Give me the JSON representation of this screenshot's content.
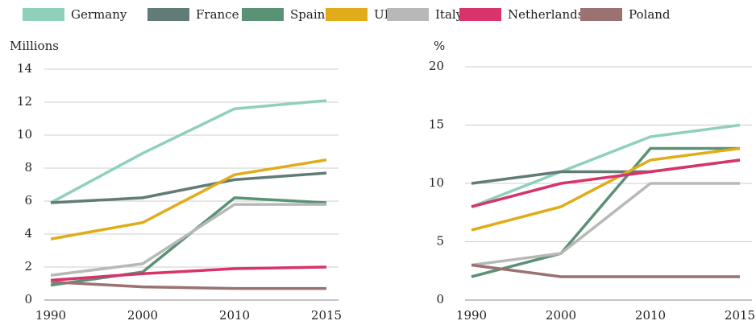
{
  "chart_data": [
    {
      "type": "line",
      "y_label": "Millions",
      "categories": [
        "1990",
        "2000",
        "2010",
        "2015"
      ],
      "ylim": [
        0,
        14
      ],
      "yticks": [
        0,
        2,
        4,
        6,
        8,
        10,
        12,
        14
      ],
      "grid": true,
      "legend": "top",
      "series": [
        {
          "name": "Germany",
          "color": "#8fd0bd",
          "values": [
            5.9,
            8.9,
            11.6,
            12.1
          ]
        },
        {
          "name": "France",
          "color": "#617b77",
          "values": [
            5.9,
            6.2,
            7.3,
            7.7
          ]
        },
        {
          "name": "Spain",
          "color": "#5a9276",
          "values": [
            0.9,
            1.7,
            6.2,
            5.9
          ]
        },
        {
          "name": "UK",
          "color": "#e0ac1a",
          "values": [
            3.7,
            4.7,
            7.6,
            8.5
          ]
        },
        {
          "name": "Italy",
          "color": "#b7b9b8",
          "values": [
            1.5,
            2.2,
            5.8,
            5.8
          ]
        },
        {
          "name": "Netherlands",
          "color": "#d8336b",
          "values": [
            1.2,
            1.6,
            1.9,
            2.0
          ]
        },
        {
          "name": "Poland",
          "color": "#9b7171",
          "values": [
            1.1,
            0.8,
            0.7,
            0.7
          ]
        }
      ]
    },
    {
      "type": "line",
      "y_label": "%",
      "categories": [
        "1990",
        "2000",
        "2010",
        "2015"
      ],
      "ylim": [
        0,
        20
      ],
      "yticks": [
        0,
        5,
        10,
        15,
        20
      ],
      "grid": true,
      "series": [
        {
          "name": "Germany",
          "color": "#8fd0bd",
          "values": [
            8,
            11,
            14,
            15
          ]
        },
        {
          "name": "France",
          "color": "#617b77",
          "values": [
            10,
            11,
            11,
            12
          ]
        },
        {
          "name": "Spain",
          "color": "#5a9276",
          "values": [
            2,
            4,
            13,
            13
          ]
        },
        {
          "name": "UK",
          "color": "#e0ac1a",
          "values": [
            6,
            8,
            12,
            13
          ]
        },
        {
          "name": "Italy",
          "color": "#b7b9b8",
          "values": [
            3,
            4,
            10,
            10
          ]
        },
        {
          "name": "Netherlands",
          "color": "#d8336b",
          "values": [
            8,
            10,
            11,
            12
          ]
        },
        {
          "name": "Poland",
          "color": "#9b7171",
          "values": [
            3,
            2,
            2,
            2
          ]
        }
      ]
    }
  ]
}
